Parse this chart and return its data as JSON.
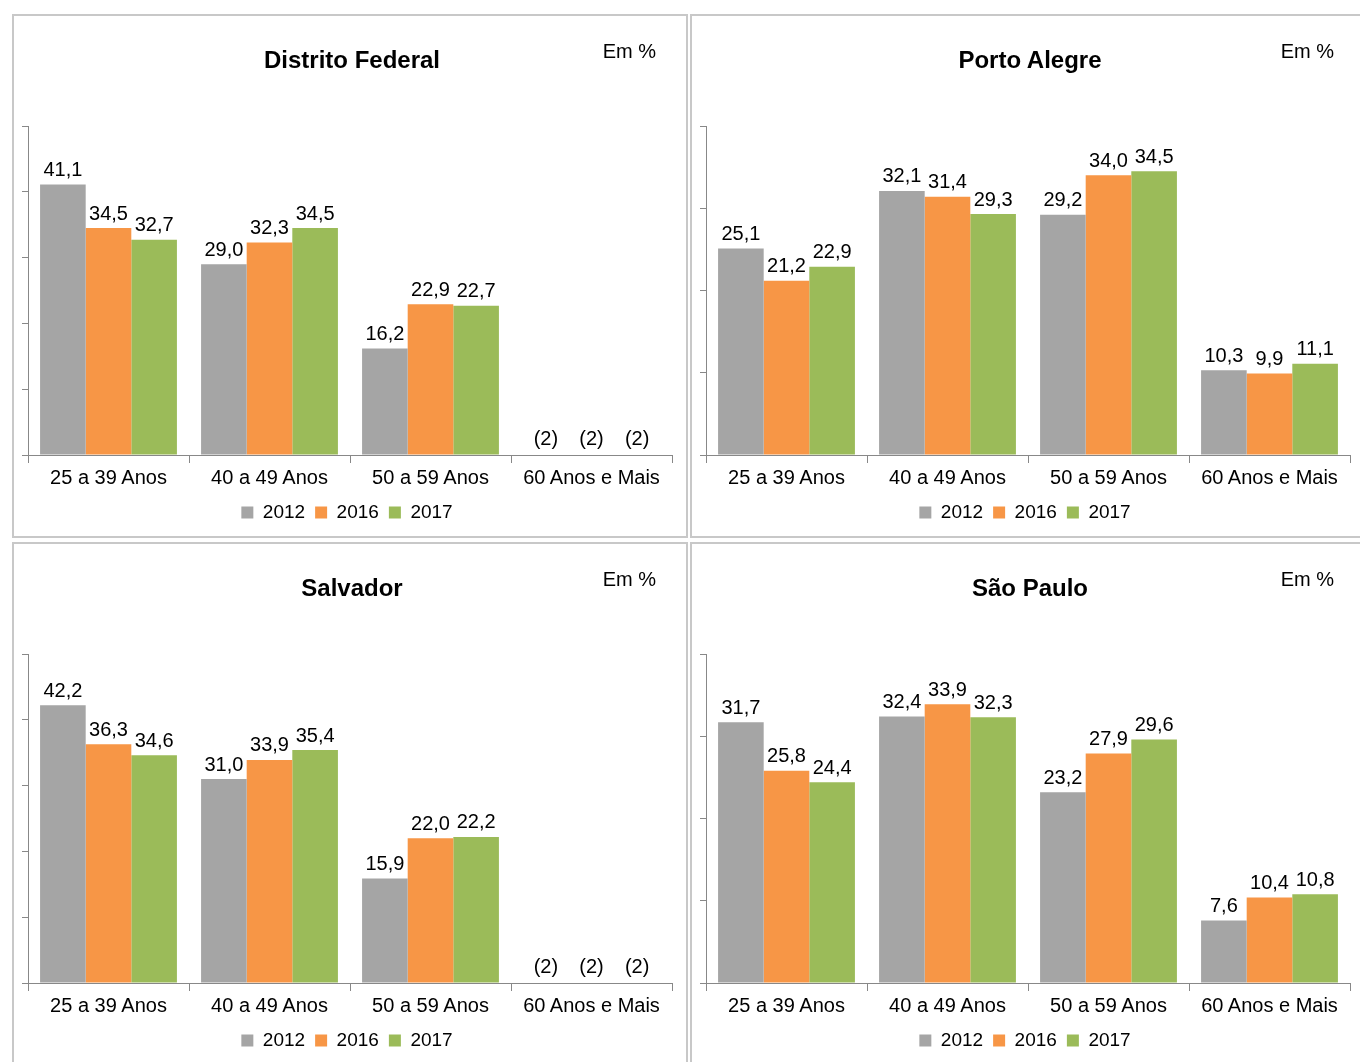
{
  "chart_data": [
    {
      "type": "bar",
      "title": "Distrito Federal",
      "annotations": [
        "Em %"
      ],
      "categories": [
        "25 a 39 Anos",
        "40 a 49 Anos",
        "50 a 59 Anos",
        "60 Anos e Mais"
      ],
      "ylim": [
        0,
        50
      ],
      "yticks": [
        {
          "value": 0,
          "label": null
        },
        {
          "value": 10,
          "label": null
        },
        {
          "value": 20,
          "label": null
        },
        {
          "value": 30,
          "label": null
        },
        {
          "value": 40,
          "label": null
        },
        {
          "value": 50,
          "label": null
        }
      ],
      "tick_labels": "x",
      "legend": "bottom",
      "series": [
        {
          "name": "2012",
          "color": "#a5a5a5",
          "values": [
            41.1,
            29.0,
            16.2,
            null
          ],
          "value_labels": [
            "41,1",
            "29,0",
            "16,2",
            "(2)"
          ]
        },
        {
          "name": "2016",
          "color": "#f79646",
          "values": [
            34.5,
            32.3,
            22.9,
            null
          ],
          "value_labels": [
            "34,5",
            "32,3",
            "22,9",
            "(2)"
          ]
        },
        {
          "name": "2017",
          "color": "#9bbb59",
          "values": [
            32.7,
            34.5,
            22.7,
            null
          ],
          "value_labels": [
            "32,7",
            "34,5",
            "22,7",
            "(2)"
          ]
        }
      ]
    },
    {
      "type": "bar",
      "title": "Porto Alegre",
      "annotations": [
        "Em %"
      ],
      "categories": [
        "25 a 39 Anos",
        "40 a 49 Anos",
        "50 a 59 Anos",
        "60 Anos e Mais"
      ],
      "ylim": [
        0,
        40
      ],
      "yticks": [
        {
          "value": 0,
          "label": null
        },
        {
          "value": 10,
          "label": null
        },
        {
          "value": 20,
          "label": null
        },
        {
          "value": 30,
          "label": null
        },
        {
          "value": 40,
          "label": null
        }
      ],
      "tick_labels": "x",
      "legend": "bottom",
      "series": [
        {
          "name": "2012",
          "color": "#a5a5a5",
          "values": [
            25.1,
            32.1,
            29.2,
            10.3
          ],
          "value_labels": [
            "25,1",
            "32,1",
            "29,2",
            "10,3"
          ]
        },
        {
          "name": "2016",
          "color": "#f79646",
          "values": [
            21.2,
            31.4,
            34.0,
            9.9
          ],
          "value_labels": [
            "21,2",
            "31,4",
            "34,0",
            "9,9"
          ]
        },
        {
          "name": "2017",
          "color": "#9bbb59",
          "values": [
            22.9,
            29.3,
            34.5,
            11.1
          ],
          "value_labels": [
            "22,9",
            "29,3",
            "34,5",
            "11,1"
          ]
        }
      ]
    },
    {
      "type": "bar",
      "title": "Salvador",
      "annotations": [
        "Em %"
      ],
      "categories": [
        "25 a 39 Anos",
        "40 a 49 Anos",
        "50 a 59 Anos",
        "60 Anos e Mais"
      ],
      "ylim": [
        0,
        50
      ],
      "yticks": [
        {
          "value": 0,
          "label": null
        },
        {
          "value": 10,
          "label": null
        },
        {
          "value": 20,
          "label": null
        },
        {
          "value": 30,
          "label": null
        },
        {
          "value": 40,
          "label": null
        },
        {
          "value": 50,
          "label": null
        }
      ],
      "tick_labels": "x",
      "legend": "bottom",
      "series": [
        {
          "name": "2012",
          "color": "#a5a5a5",
          "values": [
            42.2,
            31.0,
            15.9,
            null
          ],
          "value_labels": [
            "42,2",
            "31,0",
            "15,9",
            "(2)"
          ]
        },
        {
          "name": "2016",
          "color": "#f79646",
          "values": [
            36.3,
            33.9,
            22.0,
            null
          ],
          "value_labels": [
            "36,3",
            "33,9",
            "22,0",
            "(2)"
          ]
        },
        {
          "name": "2017",
          "color": "#9bbb59",
          "values": [
            34.6,
            35.4,
            22.2,
            null
          ],
          "value_labels": [
            "34,6",
            "35,4",
            "22,2",
            "(2)"
          ]
        }
      ]
    },
    {
      "type": "bar",
      "title": "São Paulo",
      "annotations": [
        "Em %"
      ],
      "categories": [
        "25 a 39 Anos",
        "40 a 49 Anos",
        "50 a 59 Anos",
        "60 Anos e Mais"
      ],
      "ylim": [
        0,
        40
      ],
      "yticks": [
        {
          "value": 0,
          "label": null
        },
        {
          "value": 10,
          "label": null
        },
        {
          "value": 20,
          "label": null
        },
        {
          "value": 30,
          "label": null
        },
        {
          "value": 40,
          "label": null
        }
      ],
      "tick_labels": "x",
      "legend": "bottom",
      "series": [
        {
          "name": "2012",
          "color": "#a5a5a5",
          "values": [
            31.7,
            32.4,
            23.2,
            7.6
          ],
          "value_labels": [
            "31,7",
            "32,4",
            "23,2",
            "7,6"
          ]
        },
        {
          "name": "2016",
          "color": "#f79646",
          "values": [
            25.8,
            33.9,
            27.9,
            10.4
          ],
          "value_labels": [
            "25,8",
            "33,9",
            "27,9",
            "10,4"
          ]
        },
        {
          "name": "2017",
          "color": "#9bbb59",
          "values": [
            24.4,
            32.3,
            29.6,
            10.8
          ],
          "value_labels": [
            "24,4",
            "32,3",
            "29,6",
            "10,8"
          ]
        }
      ]
    }
  ]
}
